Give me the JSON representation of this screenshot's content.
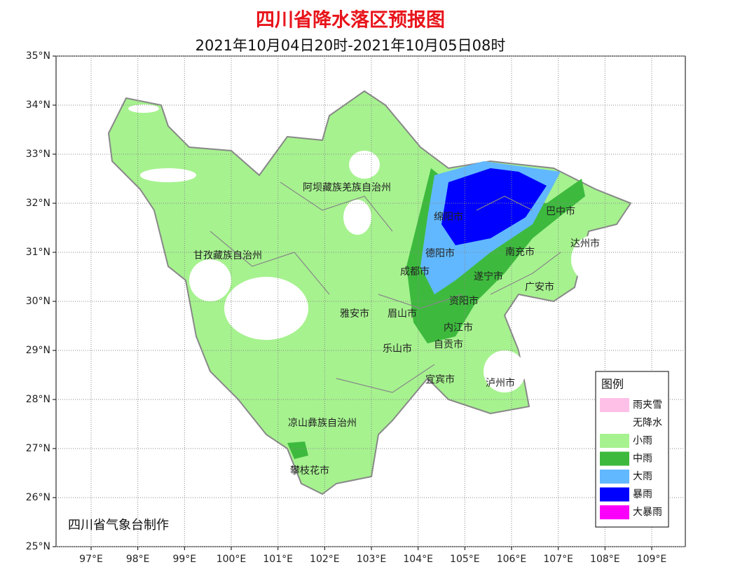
{
  "title": "四川省降水落区预报图",
  "subtitle": "2021年10月04日20时-2021年10月05日08时",
  "credit": "四川省气象台制作",
  "map": {
    "xlim": [
      96.25,
      109.72
    ],
    "ylim": [
      25,
      35
    ],
    "xticks": [
      {
        "value": 97,
        "label": "97°E"
      },
      {
        "value": 98,
        "label": "98°E"
      },
      {
        "value": 99,
        "label": "99°E"
      },
      {
        "value": 100,
        "label": "100°E"
      },
      {
        "value": 101,
        "label": "101°E"
      },
      {
        "value": 102,
        "label": "102°E"
      },
      {
        "value": 103,
        "label": "103°E"
      },
      {
        "value": 104,
        "label": "104°E"
      },
      {
        "value": 105,
        "label": "105°E"
      },
      {
        "value": 106,
        "label": "106°E"
      },
      {
        "value": 107,
        "label": "107°E"
      },
      {
        "value": 108,
        "label": "108°E"
      },
      {
        "value": 109,
        "label": "109°E"
      }
    ],
    "yticks": [
      {
        "value": 25,
        "label": "25°N"
      },
      {
        "value": 26,
        "label": "26°N"
      },
      {
        "value": 27,
        "label": "27°N"
      },
      {
        "value": 28,
        "label": "28°N"
      },
      {
        "value": 29,
        "label": "29°N"
      },
      {
        "value": 30,
        "label": "30°N"
      },
      {
        "value": 31,
        "label": "31°N"
      },
      {
        "value": 32,
        "label": "32°N"
      },
      {
        "value": 33,
        "label": "33°N"
      },
      {
        "value": 34,
        "label": "34°N"
      },
      {
        "value": 35,
        "label": "35°N"
      }
    ],
    "grid": true,
    "places": [
      "阿坝藏族羌族自治州",
      "甘孜藏族自治州",
      "绵阳市",
      "巴中市",
      "达州市",
      "德阳市",
      "南充市",
      "成都市",
      "遂宁市",
      "广安市",
      "资阳市",
      "雅安市",
      "眉山市",
      "内江市",
      "自贡市",
      "乐山市",
      "宜宾市",
      "泸州市",
      "凉山彝族自治州",
      "攀枝花市"
    ]
  },
  "legend": {
    "title": "图例",
    "items": [
      {
        "name": "雨夹雪",
        "color": "#ffc0e8"
      },
      {
        "name": "无降水",
        "color": "#ffffff"
      },
      {
        "name": "小雨",
        "color": "#a6f28f"
      },
      {
        "name": "中雨",
        "color": "#3dba3d"
      },
      {
        "name": "大雨",
        "color": "#61b8ff"
      },
      {
        "name": "暴雨",
        "color": "#0000fe"
      },
      {
        "name": "大暴雨",
        "color": "#fa00fa"
      }
    ]
  }
}
